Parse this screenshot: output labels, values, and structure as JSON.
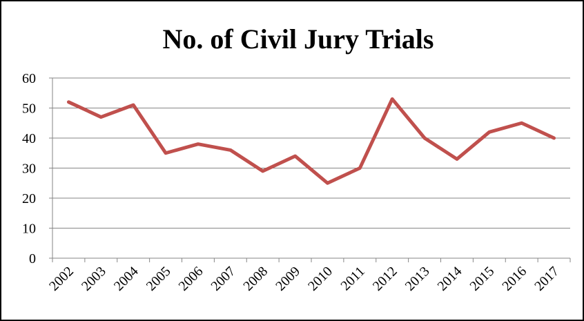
{
  "chart_data": {
    "type": "line",
    "title": "No. of Civil Jury Trials",
    "categories": [
      "2002",
      "2003",
      "2004",
      "2005",
      "2006",
      "2007",
      "2008",
      "2009",
      "2010",
      "2011",
      "2012",
      "2013",
      "2014",
      "2015",
      "2016",
      "2017"
    ],
    "series": [
      {
        "name": "No. of Civil Jury Trials",
        "color": "#c0504d",
        "values": [
          52,
          47,
          51,
          35,
          38,
          36,
          29,
          34,
          25,
          30,
          53,
          40,
          33,
          42,
          45,
          40
        ]
      }
    ],
    "ylim": [
      0,
      60
    ],
    "yticks": [
      0,
      10,
      20,
      30,
      40,
      50,
      60
    ],
    "grid": true
  }
}
